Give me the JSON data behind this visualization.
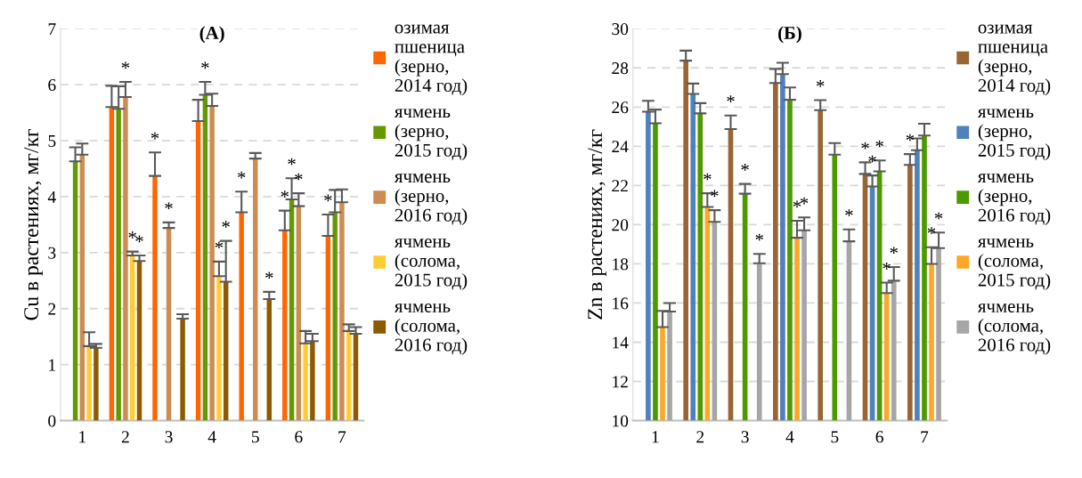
{
  "chart_data": [
    {
      "type": "bar",
      "title": "(A)",
      "ylabel": "Cu в растениях, мг/кг",
      "categories": [
        "1",
        "2",
        "3",
        "4",
        "5",
        "6",
        "7"
      ],
      "ylim": [
        0,
        7
      ],
      "yticks": [
        0,
        1,
        2,
        3,
        4,
        5,
        6,
        7
      ],
      "grid": "y",
      "legend": "right",
      "series": [
        {
          "name": "озимая\nпшеница\n(зерно,\n2014 год)",
          "color": "#ff6600",
          "values": [
            null,
            5.6,
            4.37,
            5.35,
            3.72,
            3.4,
            3.3
          ],
          "errors": [
            null,
            0.38,
            0.42,
            0.38,
            0.37,
            0.35,
            0.38
          ],
          "value_labels": [
            null,
            null,
            "*",
            null,
            "*",
            "*",
            "*"
          ]
        },
        {
          "name": "ячмень\n(зерно,\n2015 год)",
          "color": "#669900",
          "values": [
            4.63,
            5.57,
            null,
            5.82,
            null,
            3.95,
            3.72
          ],
          "errors": [
            0.25,
            0.4,
            null,
            0.23,
            null,
            0.38,
            0.4
          ],
          "value_labels": [
            null,
            null,
            null,
            "*",
            null,
            "*",
            null
          ]
        },
        {
          "name": "ячмень\n(зерно,\n2016 год)",
          "color": "#cc8c52",
          "values": [
            4.75,
            5.78,
            3.44,
            5.62,
            4.68,
            3.83,
            3.9
          ],
          "errors": [
            0.2,
            0.27,
            0.1,
            0.22,
            0.1,
            0.23,
            0.23
          ],
          "value_labels": [
            null,
            "*",
            "*",
            null,
            null,
            "*",
            null
          ]
        },
        {
          "name": "ячмень\n(солома,\n2015 год)",
          "color": "#ffcc33",
          "values": [
            1.33,
            2.95,
            null,
            2.58,
            null,
            1.38,
            1.6
          ],
          "errors": [
            0.25,
            0.07,
            null,
            0.26,
            null,
            0.22,
            0.12
          ],
          "value_labels": [
            null,
            "*",
            null,
            "*",
            null,
            null,
            null
          ]
        },
        {
          "name": "ячмень\n(солома,\n2016 год)",
          "color": "#8c5a00",
          "values": [
            1.3,
            2.85,
            1.82,
            2.48,
            2.17,
            1.42,
            1.55
          ],
          "errors": [
            0.07,
            0.1,
            0.08,
            0.73,
            0.13,
            0.13,
            0.12
          ],
          "value_labels": [
            null,
            "*",
            null,
            "*",
            "*",
            null,
            null
          ]
        }
      ]
    },
    {
      "type": "bar",
      "title": "(Б)",
      "ylabel": "Zn в растениях, мг/кг",
      "categories": [
        "1",
        "2",
        "3",
        "4",
        "5",
        "6",
        "7"
      ],
      "ylim": [
        10,
        30
      ],
      "yticks": [
        10,
        12,
        14,
        16,
        18,
        20,
        22,
        24,
        26,
        28,
        30
      ],
      "grid": "y",
      "legend": "right",
      "series": [
        {
          "name": "озимая\nпшеница\n(зерно,\n2014 год)",
          "color": "#996633",
          "values": [
            null,
            28.37,
            24.88,
            27.23,
            25.84,
            22.59,
            23.05
          ],
          "errors": [
            null,
            0.51,
            0.69,
            0.72,
            0.51,
            0.59,
            0.55
          ],
          "value_labels": [
            null,
            null,
            "*",
            null,
            "*",
            "*",
            "*"
          ]
        },
        {
          "name": "ячмень\n(зерно,\n2015 год)",
          "color": "#4f81bd",
          "values": [
            25.76,
            26.67,
            null,
            27.68,
            null,
            21.95,
            23.8
          ],
          "errors": [
            0.56,
            0.53,
            null,
            0.58,
            null,
            0.56,
            0.6
          ],
          "value_labels": [
            null,
            null,
            null,
            null,
            null,
            "*",
            null
          ]
        },
        {
          "name": "ячмень\n(зерно,\n2016 год)",
          "color": "#4d9900",
          "values": [
            25.17,
            25.68,
            21.58,
            26.37,
            23.57,
            22.72,
            24.55
          ],
          "errors": [
            0.7,
            0.52,
            0.5,
            0.63,
            0.59,
            0.56,
            0.6
          ],
          "value_labels": [
            null,
            null,
            "*",
            null,
            null,
            "*",
            null
          ]
        },
        {
          "name": "ячмень\n(солома,\n2015 год)",
          "color": "#ffa726",
          "values": [
            14.77,
            20.9,
            null,
            19.33,
            null,
            16.51,
            18.0
          ],
          "errors": [
            0.83,
            0.7,
            null,
            0.87,
            null,
            0.53,
            0.85
          ],
          "value_labels": [
            null,
            "*",
            null,
            "*",
            null,
            "*",
            "*"
          ]
        },
        {
          "name": "ячмень\n(солома,\n2016 год)",
          "color": "#a6a6a6",
          "values": [
            15.57,
            20.14,
            18.03,
            19.71,
            19.15,
            17.14,
            18.8
          ],
          "errors": [
            0.43,
            0.6,
            0.48,
            0.66,
            0.61,
            0.7,
            0.8
          ],
          "value_labels": [
            null,
            "*",
            "*",
            "*",
            "*",
            "*",
            "*"
          ]
        }
      ]
    }
  ]
}
